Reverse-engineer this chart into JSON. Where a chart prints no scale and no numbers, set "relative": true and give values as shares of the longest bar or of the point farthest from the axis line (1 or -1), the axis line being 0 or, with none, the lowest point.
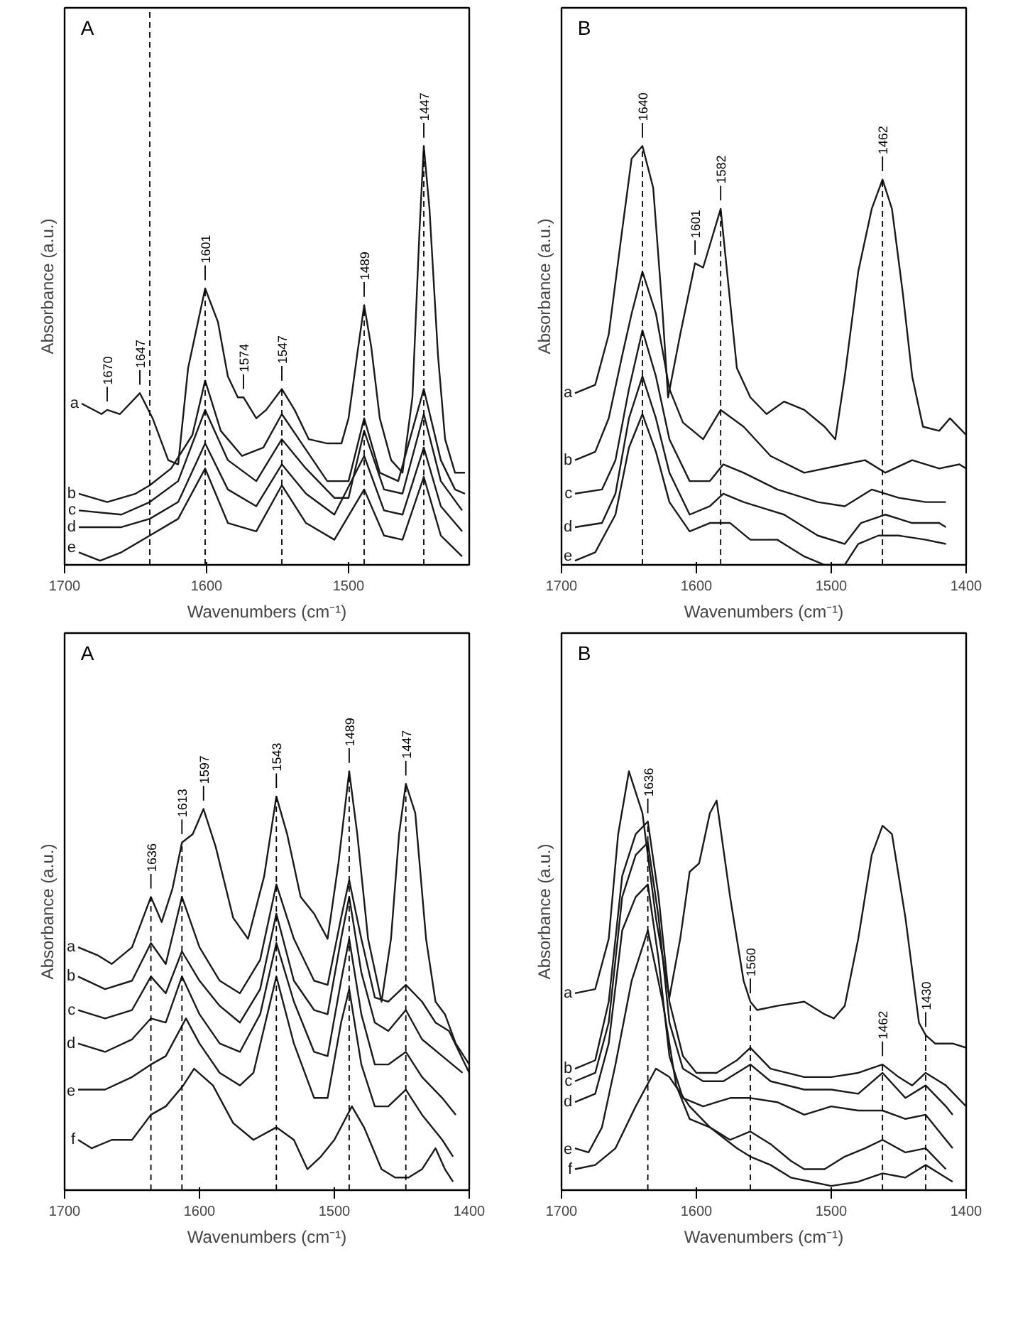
{
  "chart_data": [
    {
      "type": "line",
      "title": "A",
      "xlabel": "Wavenumbers (cm⁻¹)",
      "ylabel": "Absorbance (a.u.)",
      "relative": true,
      "tick_labels": "x",
      "grid": false,
      "xlim": [
        1700,
        1415
      ],
      "xticks": [
        1700,
        1600,
        1500
      ],
      "series": [
        {
          "name": "a",
          "color": "#1a1a1a",
          "x": [
            1688,
            1674,
            1670,
            1661,
            1647,
            1638,
            1627,
            1620,
            1613,
            1601,
            1592,
            1585,
            1578,
            1574,
            1565,
            1558,
            1547,
            1538,
            1528,
            1515,
            1505,
            1500,
            1494,
            1489,
            1484,
            1478,
            1470,
            1462,
            1455,
            1450,
            1447,
            1443,
            1437,
            1432,
            1425,
            1418
          ],
          "values": [
            0.385,
            0.36,
            0.37,
            0.36,
            0.41,
            0.35,
            0.25,
            0.24,
            0.47,
            0.66,
            0.58,
            0.45,
            0.4,
            0.4,
            0.35,
            0.37,
            0.42,
            0.37,
            0.3,
            0.29,
            0.29,
            0.35,
            0.5,
            0.62,
            0.52,
            0.35,
            0.25,
            0.22,
            0.4,
            0.8,
            1.0,
            0.85,
            0.5,
            0.3,
            0.22,
            0.22
          ]
        },
        {
          "name": "b",
          "color": "#1a1a1a",
          "x": [
            1690,
            1670,
            1650,
            1640,
            1625,
            1610,
            1601,
            1590,
            1575,
            1560,
            1547,
            1535,
            1515,
            1500,
            1489,
            1478,
            1465,
            1447,
            1435,
            1425,
            1418
          ],
          "values": [
            0.17,
            0.15,
            0.17,
            0.19,
            0.23,
            0.31,
            0.44,
            0.32,
            0.26,
            0.28,
            0.36,
            0.3,
            0.2,
            0.2,
            0.35,
            0.22,
            0.2,
            0.42,
            0.25,
            0.18,
            0.17
          ]
        },
        {
          "name": "c",
          "color": "#1a1a1a",
          "x": [
            1690,
            1660,
            1640,
            1620,
            1601,
            1585,
            1565,
            1547,
            1530,
            1510,
            1500,
            1489,
            1475,
            1462,
            1447,
            1435,
            1420
          ],
          "values": [
            0.13,
            0.12,
            0.15,
            0.2,
            0.37,
            0.25,
            0.2,
            0.3,
            0.23,
            0.16,
            0.16,
            0.32,
            0.18,
            0.17,
            0.36,
            0.2,
            0.13
          ]
        },
        {
          "name": "d",
          "color": "#1a1a1a",
          "x": [
            1690,
            1660,
            1640,
            1620,
            1601,
            1585,
            1565,
            1547,
            1530,
            1510,
            1489,
            1475,
            1462,
            1447,
            1435,
            1420
          ],
          "values": [
            0.09,
            0.09,
            0.11,
            0.15,
            0.29,
            0.18,
            0.14,
            0.24,
            0.17,
            0.12,
            0.26,
            0.13,
            0.12,
            0.28,
            0.14,
            0.08
          ]
        },
        {
          "name": "e",
          "color": "#1a1a1a",
          "x": [
            1690,
            1675,
            1660,
            1640,
            1620,
            1601,
            1585,
            1565,
            1547,
            1530,
            1510,
            1489,
            1475,
            1462,
            1447,
            1435,
            1420
          ],
          "values": [
            0.03,
            0.01,
            0.03,
            0.07,
            0.11,
            0.23,
            0.1,
            0.08,
            0.19,
            0.1,
            0.06,
            0.18,
            0.07,
            0.06,
            0.21,
            0.07,
            0.02
          ]
        }
      ],
      "ref_lines": [
        {
          "axis": "x",
          "value": 1640,
          "line_style": "dashed"
        },
        {
          "axis": "x",
          "value": 1601,
          "line_style": "dashed"
        },
        {
          "axis": "x",
          "value": 1547,
          "line_style": "dashed"
        },
        {
          "axis": "x",
          "value": 1489,
          "line_style": "dashed"
        },
        {
          "axis": "x",
          "value": 1447,
          "line_style": "dashed"
        }
      ],
      "annotations": [
        {
          "text": "1670",
          "x": 1670,
          "y": 0.37
        },
        {
          "text": "1647",
          "x": 1647,
          "y": 0.41
        },
        {
          "text": "1601",
          "x": 1601,
          "y": 0.66
        },
        {
          "text": "1574",
          "x": 1574,
          "y": 0.4
        },
        {
          "text": "1547",
          "x": 1547,
          "y": 0.42
        },
        {
          "text": "1489",
          "x": 1489,
          "y": 0.62
        },
        {
          "text": "1447",
          "x": 1447,
          "y": 1.0
        }
      ]
    },
    {
      "type": "line",
      "title": "B",
      "xlabel": "Wavenumbers (cm⁻¹)",
      "ylabel": "Absorbance (a.u.)",
      "relative": true,
      "tick_labels": "x",
      "grid": false,
      "xlim": [
        1700,
        1400
      ],
      "xticks": [
        1700,
        1600,
        1500,
        1400
      ],
      "series": [
        {
          "name": "a",
          "color": "#1a1a1a",
          "x": [
            1690,
            1675,
            1665,
            1655,
            1648,
            1640,
            1632,
            1625,
            1621,
            1612,
            1601,
            1595,
            1582,
            1570,
            1560,
            1548,
            1535,
            1520,
            1505,
            1497,
            1490,
            1480,
            1470,
            1462,
            1455,
            1447,
            1440,
            1432,
            1420,
            1412,
            1400
          ],
          "values": [
            0.41,
            0.43,
            0.55,
            0.8,
            0.97,
            1.0,
            0.9,
            0.6,
            0.4,
            0.55,
            0.72,
            0.71,
            0.85,
            0.47,
            0.4,
            0.36,
            0.39,
            0.37,
            0.33,
            0.3,
            0.45,
            0.7,
            0.85,
            0.92,
            0.85,
            0.65,
            0.45,
            0.33,
            0.32,
            0.35,
            0.31
          ]
        },
        {
          "name": "b",
          "color": "#1a1a1a",
          "x": [
            1690,
            1675,
            1665,
            1655,
            1648,
            1640,
            1630,
            1620,
            1610,
            1595,
            1582,
            1565,
            1545,
            1520,
            1490,
            1475,
            1460,
            1440,
            1420,
            1405,
            1400
          ],
          "values": [
            0.25,
            0.27,
            0.35,
            0.5,
            0.6,
            0.7,
            0.6,
            0.42,
            0.34,
            0.3,
            0.37,
            0.33,
            0.26,
            0.22,
            0.24,
            0.25,
            0.22,
            0.25,
            0.23,
            0.24,
            0.23
          ]
        },
        {
          "name": "c",
          "color": "#1a1a1a",
          "x": [
            1690,
            1670,
            1660,
            1650,
            1640,
            1630,
            1620,
            1605,
            1590,
            1580,
            1565,
            1540,
            1510,
            1490,
            1470,
            1450,
            1430,
            1415
          ],
          "values": [
            0.17,
            0.18,
            0.25,
            0.42,
            0.56,
            0.45,
            0.3,
            0.2,
            0.2,
            0.24,
            0.22,
            0.18,
            0.15,
            0.14,
            0.18,
            0.16,
            0.15,
            0.15
          ]
        },
        {
          "name": "d",
          "color": "#1a1a1a",
          "x": [
            1690,
            1670,
            1660,
            1650,
            1640,
            1630,
            1620,
            1605,
            1590,
            1580,
            1565,
            1545,
            1535,
            1510,
            1490,
            1478,
            1460,
            1440,
            1420,
            1415
          ],
          "values": [
            0.09,
            0.1,
            0.17,
            0.35,
            0.45,
            0.35,
            0.22,
            0.12,
            0.14,
            0.17,
            0.15,
            0.13,
            0.12,
            0.07,
            0.05,
            0.1,
            0.12,
            0.1,
            0.1,
            0.09
          ]
        },
        {
          "name": "e",
          "color": "#1a1a1a",
          "x": [
            1690,
            1675,
            1660,
            1650,
            1640,
            1630,
            1620,
            1605,
            1590,
            1575,
            1560,
            1540,
            1520,
            1505,
            1490,
            1480,
            1465,
            1450,
            1430,
            1415
          ],
          "values": [
            0.01,
            0.03,
            0.12,
            0.28,
            0.36,
            0.27,
            0.15,
            0.08,
            0.1,
            0.1,
            0.06,
            0.06,
            0.02,
            0.0,
            0.0,
            0.05,
            0.07,
            0.07,
            0.06,
            0.05
          ]
        }
      ],
      "ref_lines": [
        {
          "axis": "x",
          "value": 1640,
          "line_style": "dashed"
        },
        {
          "axis": "x",
          "value": 1582,
          "line_style": "dashed"
        },
        {
          "axis": "x",
          "value": 1462,
          "line_style": "dashed"
        }
      ],
      "annotations": [
        {
          "text": "1640",
          "x": 1640,
          "y": 1.0
        },
        {
          "text": "1601",
          "x": 1601,
          "y": 0.72
        },
        {
          "text": "1582",
          "x": 1582,
          "y": 0.85
        },
        {
          "text": "1462",
          "x": 1462,
          "y": 0.92
        }
      ]
    },
    {
      "type": "line",
      "title": "A",
      "xlabel": "Wavenumbers (cm⁻¹)",
      "ylabel": "Absorbance (a.u.)",
      "relative": true,
      "tick_labels": "x",
      "grid": false,
      "xlim": [
        1700,
        1400
      ],
      "xticks": [
        1700,
        1600,
        1500,
        1400
      ],
      "series": [
        {
          "name": "a",
          "color": "#1a1a1a",
          "x": [
            1690,
            1675,
            1665,
            1650,
            1636,
            1628,
            1620,
            1613,
            1605,
            1597,
            1588,
            1575,
            1564,
            1552,
            1543,
            1535,
            1525,
            1515,
            1505,
            1497,
            1489,
            1483,
            1475,
            1465,
            1458,
            1452,
            1447,
            1440,
            1432,
            1425,
            1418,
            1410,
            1400
          ],
          "values": [
            0.58,
            0.56,
            0.54,
            0.58,
            0.7,
            0.64,
            0.72,
            0.83,
            0.85,
            0.91,
            0.82,
            0.65,
            0.6,
            0.75,
            0.94,
            0.85,
            0.7,
            0.66,
            0.6,
            0.78,
            1.0,
            0.85,
            0.6,
            0.45,
            0.6,
            0.85,
            0.97,
            0.9,
            0.6,
            0.45,
            0.42,
            0.35,
            0.3
          ]
        },
        {
          "name": "b",
          "color": "#1a1a1a",
          "x": [
            1690,
            1670,
            1650,
            1636,
            1625,
            1613,
            1600,
            1585,
            1570,
            1555,
            1543,
            1530,
            1515,
            1505,
            1495,
            1489,
            1480,
            1470,
            1460,
            1447,
            1435,
            1425,
            1415,
            1400
          ],
          "values": [
            0.51,
            0.48,
            0.5,
            0.59,
            0.54,
            0.7,
            0.58,
            0.5,
            0.47,
            0.55,
            0.73,
            0.6,
            0.5,
            0.49,
            0.65,
            0.74,
            0.6,
            0.46,
            0.45,
            0.49,
            0.45,
            0.4,
            0.38,
            0.28
          ]
        },
        {
          "name": "c",
          "color": "#1a1a1a",
          "x": [
            1690,
            1670,
            1650,
            1636,
            1625,
            1613,
            1600,
            1585,
            1570,
            1555,
            1543,
            1530,
            1515,
            1505,
            1495,
            1489,
            1480,
            1470,
            1460,
            1447,
            1435,
            1420,
            1405
          ],
          "values": [
            0.43,
            0.41,
            0.43,
            0.51,
            0.47,
            0.57,
            0.5,
            0.44,
            0.4,
            0.48,
            0.66,
            0.5,
            0.43,
            0.42,
            0.6,
            0.7,
            0.52,
            0.4,
            0.38,
            0.43,
            0.36,
            0.32,
            0.28
          ]
        },
        {
          "name": "d",
          "color": "#1a1a1a",
          "x": [
            1690,
            1670,
            1650,
            1636,
            1625,
            1613,
            1600,
            1585,
            1570,
            1555,
            1543,
            1530,
            1515,
            1505,
            1495,
            1489,
            1480,
            1470,
            1460,
            1447,
            1435,
            1420,
            1410
          ],
          "values": [
            0.35,
            0.33,
            0.36,
            0.41,
            0.4,
            0.51,
            0.42,
            0.35,
            0.33,
            0.42,
            0.59,
            0.45,
            0.33,
            0.32,
            0.5,
            0.6,
            0.42,
            0.3,
            0.3,
            0.33,
            0.27,
            0.22,
            0.18
          ]
        },
        {
          "name": "e",
          "color": "#1a1a1a",
          "x": [
            1690,
            1670,
            1650,
            1636,
            1625,
            1610,
            1600,
            1585,
            1570,
            1560,
            1543,
            1530,
            1515,
            1505,
            1495,
            1489,
            1480,
            1470,
            1460,
            1447,
            1435,
            1420,
            1412
          ],
          "values": [
            0.24,
            0.24,
            0.27,
            0.3,
            0.32,
            0.41,
            0.35,
            0.28,
            0.25,
            0.28,
            0.51,
            0.35,
            0.22,
            0.22,
            0.4,
            0.48,
            0.3,
            0.2,
            0.2,
            0.24,
            0.18,
            0.12,
            0.08
          ]
        },
        {
          "name": "f",
          "color": "#1a1a1a",
          "x": [
            1690,
            1680,
            1665,
            1650,
            1636,
            1625,
            1612,
            1604,
            1590,
            1575,
            1560,
            1543,
            1530,
            1520,
            1510,
            1500,
            1487,
            1478,
            1465,
            1455,
            1445,
            1435,
            1425,
            1418,
            1412
          ],
          "values": [
            0.12,
            0.1,
            0.12,
            0.12,
            0.18,
            0.2,
            0.25,
            0.29,
            0.25,
            0.16,
            0.12,
            0.15,
            0.12,
            0.05,
            0.08,
            0.12,
            0.2,
            0.15,
            0.05,
            0.03,
            0.03,
            0.05,
            0.1,
            0.05,
            0.02
          ]
        }
      ],
      "ref_lines": [
        {
          "axis": "x",
          "value": 1636,
          "line_style": "dashed"
        },
        {
          "axis": "x",
          "value": 1613,
          "line_style": "dashed"
        },
        {
          "axis": "x",
          "value": 1543,
          "line_style": "dashed"
        },
        {
          "axis": "x",
          "value": 1489,
          "line_style": "dashed"
        },
        {
          "axis": "x",
          "value": 1447,
          "line_style": "dashed"
        }
      ],
      "annotations": [
        {
          "text": "1636",
          "x": 1636,
          "y": 0.7
        },
        {
          "text": "1613",
          "x": 1613,
          "y": 0.83
        },
        {
          "text": "1597",
          "x": 1597,
          "y": 0.91
        },
        {
          "text": "1543",
          "x": 1543,
          "y": 0.94
        },
        {
          "text": "1489",
          "x": 1489,
          "y": 1.0
        },
        {
          "text": "1447",
          "x": 1447,
          "y": 0.97
        }
      ]
    },
    {
      "type": "line",
      "title": "B",
      "xlabel": "Wavenumbers (cm⁻¹)",
      "ylabel": "Absorbance (a.u.)",
      "relative": true,
      "tick_labels": "x",
      "grid": false,
      "xlim": [
        1700,
        1400
      ],
      "xticks": [
        1700,
        1600,
        1500,
        1400
      ],
      "series": [
        {
          "name": "a",
          "color": "#1a1a1a",
          "x": [
            1690,
            1675,
            1665,
            1658,
            1650,
            1640,
            1630,
            1620,
            1612,
            1605,
            1598,
            1590,
            1585,
            1575,
            1565,
            1560,
            1555,
            1540,
            1520,
            1505,
            1498,
            1490,
            1480,
            1470,
            1462,
            1455,
            1445,
            1435,
            1430,
            1423,
            1410,
            1400
          ],
          "values": [
            0.47,
            0.48,
            0.6,
            0.85,
            1.0,
            0.9,
            0.65,
            0.46,
            0.6,
            0.76,
            0.78,
            0.9,
            0.93,
            0.7,
            0.5,
            0.45,
            0.43,
            0.44,
            0.45,
            0.42,
            0.41,
            0.44,
            0.6,
            0.8,
            0.87,
            0.85,
            0.65,
            0.4,
            0.37,
            0.35,
            0.35,
            0.34
          ]
        },
        {
          "name": "b",
          "color": "#1a1a1a",
          "x": [
            1690,
            1675,
            1665,
            1655,
            1645,
            1636,
            1628,
            1620,
            1610,
            1600,
            1585,
            1570,
            1560,
            1545,
            1520,
            1500,
            1480,
            1462,
            1450,
            1440,
            1430,
            1415,
            1400
          ],
          "values": [
            0.29,
            0.31,
            0.45,
            0.75,
            0.85,
            0.88,
            0.7,
            0.45,
            0.32,
            0.28,
            0.28,
            0.31,
            0.34,
            0.29,
            0.27,
            0.27,
            0.28,
            0.3,
            0.27,
            0.25,
            0.28,
            0.25,
            0.2
          ]
        },
        {
          "name": "c",
          "color": "#1a1a1a",
          "x": [
            1690,
            1675,
            1665,
            1655,
            1645,
            1636,
            1628,
            1620,
            1610,
            1595,
            1580,
            1560,
            1545,
            1520,
            1500,
            1480,
            1462,
            1445,
            1430,
            1415,
            1410
          ],
          "values": [
            0.26,
            0.28,
            0.4,
            0.7,
            0.8,
            0.83,
            0.65,
            0.4,
            0.29,
            0.26,
            0.26,
            0.3,
            0.26,
            0.24,
            0.24,
            0.23,
            0.28,
            0.22,
            0.25,
            0.2,
            0.18
          ]
        },
        {
          "name": "d",
          "color": "#1a1a1a",
          "x": [
            1690,
            1675,
            1665,
            1655,
            1645,
            1636,
            1628,
            1620,
            1610,
            1595,
            1575,
            1560,
            1540,
            1520,
            1500,
            1480,
            1462,
            1445,
            1430,
            1415,
            1410
          ],
          "values": [
            0.21,
            0.23,
            0.35,
            0.62,
            0.7,
            0.73,
            0.55,
            0.32,
            0.22,
            0.2,
            0.22,
            0.22,
            0.21,
            0.18,
            0.2,
            0.19,
            0.19,
            0.17,
            0.18,
            0.12,
            0.1
          ]
        },
        {
          "name": "e",
          "color": "#1a1a1a",
          "x": [
            1690,
            1680,
            1670,
            1660,
            1648,
            1636,
            1625,
            1615,
            1605,
            1590,
            1575,
            1560,
            1545,
            1530,
            1520,
            1505,
            1490,
            1475,
            1462,
            1445,
            1430,
            1415
          ],
          "values": [
            0.1,
            0.09,
            0.15,
            0.3,
            0.5,
            0.62,
            0.45,
            0.25,
            0.17,
            0.15,
            0.12,
            0.14,
            0.11,
            0.07,
            0.05,
            0.05,
            0.08,
            0.1,
            0.12,
            0.09,
            0.1,
            0.05
          ]
        },
        {
          "name": "f",
          "color": "#1a1a1a",
          "x": [
            1690,
            1675,
            1660,
            1645,
            1630,
            1620,
            1605,
            1590,
            1570,
            1560,
            1545,
            1530,
            1515,
            1500,
            1480,
            1462,
            1445,
            1430,
            1420,
            1410
          ],
          "values": [
            0.05,
            0.06,
            0.1,
            0.2,
            0.29,
            0.27,
            0.2,
            0.15,
            0.1,
            0.08,
            0.06,
            0.03,
            0.02,
            0.01,
            0.02,
            0.04,
            0.03,
            0.06,
            0.04,
            0.02
          ]
        }
      ],
      "ref_lines": [
        {
          "axis": "x",
          "value": 1636,
          "line_style": "dashed"
        },
        {
          "axis": "x",
          "value": 1560,
          "line_style": "dashed"
        },
        {
          "axis": "x",
          "value": 1462,
          "line_style": "dashed"
        },
        {
          "axis": "x",
          "value": 1430,
          "line_style": "dashed"
        }
      ],
      "annotations": [
        {
          "text": "1636",
          "x": 1636,
          "y": 0.88
        },
        {
          "text": "1560",
          "x": 1560,
          "y": 0.45
        },
        {
          "text": "1462",
          "x": 1462,
          "y": 0.3
        },
        {
          "text": "1430",
          "x": 1430,
          "y": 0.37
        }
      ]
    }
  ]
}
